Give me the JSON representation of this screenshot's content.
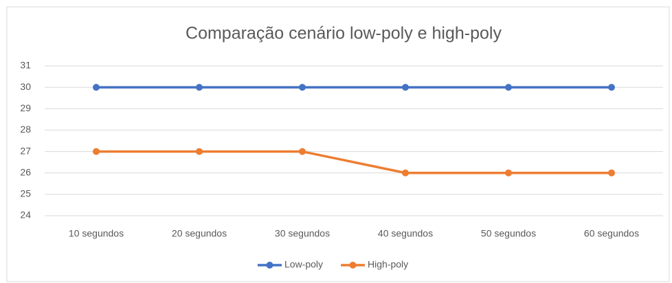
{
  "chart_data": {
    "type": "line",
    "title": "Comparação cenário low-poly e high-poly",
    "categories": [
      "10 segundos",
      "20 segundos",
      "30 segundos",
      "40 segundos",
      "50 segundos",
      "60 segundos"
    ],
    "series": [
      {
        "name": "Low-poly",
        "color": "#4472c4",
        "values": [
          30,
          30,
          30,
          30,
          30,
          30
        ]
      },
      {
        "name": "High-poly",
        "color": "#ed7d31",
        "values": [
          27,
          27,
          27,
          26,
          26,
          26
        ]
      }
    ],
    "ylim": [
      24,
      31
    ],
    "yticks": [
      24,
      25,
      26,
      27,
      28,
      29,
      30,
      31
    ],
    "grid": true,
    "legend": "bottom"
  }
}
